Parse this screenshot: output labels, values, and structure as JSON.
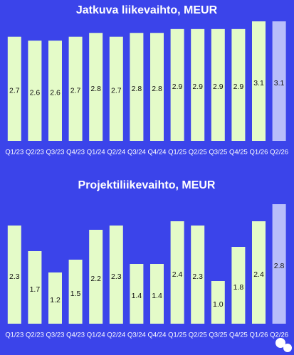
{
  "chart_data": [
    {
      "type": "bar",
      "title": "Jatkuva liikevaihto, MEUR",
      "categories": [
        "Q1/23",
        "Q2/23",
        "Q3/23",
        "Q4/23",
        "Q1/24",
        "Q2/24",
        "Q3/24",
        "Q4/24",
        "Q1/25",
        "Q2/25",
        "Q3/25",
        "Q4/25",
        "Q1/26",
        "Q2/26"
      ],
      "values": [
        2.7,
        2.6,
        2.6,
        2.7,
        2.8,
        2.7,
        2.8,
        2.8,
        2.9,
        2.9,
        2.9,
        2.9,
        3.1,
        3.1
      ],
      "colors": [
        "#e4fbc8",
        "#e4fbc8",
        "#e4fbc8",
        "#e4fbc8",
        "#e4fbc8",
        "#e4fbc8",
        "#e4fbc8",
        "#e4fbc8",
        "#e4fbc8",
        "#e4fbc8",
        "#e4fbc8",
        "#e4fbc8",
        "#e4fbc8",
        "#b8befa"
      ]
    },
    {
      "type": "bar",
      "title": "Projektiliikevaihto, MEUR",
      "categories": [
        "Q1/23",
        "Q2/23",
        "Q3/23",
        "Q4/23",
        "Q1/24",
        "Q2/24",
        "Q3/24",
        "Q4/24",
        "Q1/25",
        "Q2/25",
        "Q3/25",
        "Q4/25",
        "Q1/26",
        "Q2/26"
      ],
      "values": [
        2.3,
        1.7,
        1.2,
        1.5,
        2.2,
        2.3,
        1.4,
        1.4,
        2.4,
        2.3,
        1.0,
        1.8,
        2.4,
        2.8
      ],
      "value_labels": [
        "2.3",
        "1.7",
        "1.2",
        "1.5",
        "2.2",
        "2.3",
        "1.4",
        "1.4",
        "2.4",
        "2.3",
        "1.0",
        "1.8",
        "2.4",
        "2.8"
      ],
      "colors": [
        "#e4fbc8",
        "#e4fbc8",
        "#e4fbc8",
        "#e4fbc8",
        "#e4fbc8",
        "#e4fbc8",
        "#e4fbc8",
        "#e4fbc8",
        "#e4fbc8",
        "#e4fbc8",
        "#e4fbc8",
        "#e4fbc8",
        "#e4fbc8",
        "#b8befa"
      ]
    }
  ]
}
